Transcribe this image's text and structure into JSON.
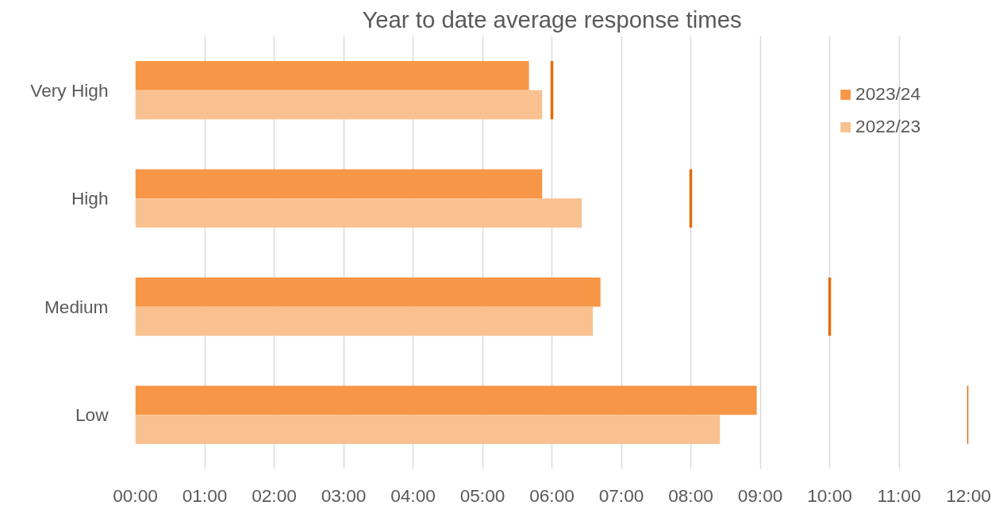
{
  "chart_data": {
    "type": "bar",
    "orientation": "horizontal",
    "title": "Year to date average response times",
    "categories": [
      "Very High",
      "High",
      "Medium",
      "Low"
    ],
    "series": [
      {
        "name": "2023/24",
        "color": "#f79646",
        "values": [
          5.67,
          5.86,
          6.7,
          8.95
        ]
      },
      {
        "name": "2022/23",
        "color": "#f9c190",
        "values": [
          5.86,
          6.43,
          6.59,
          8.42
        ]
      },
      {
        "type": "bar",
        "color": "#e36c0a",
        "base": [
          5.98,
          7.98,
          9.98,
          11.98
        ],
        "values": [
          0.04,
          0.04,
          0.04,
          0.04
        ]
      }
    ],
    "xlim": [
      0,
      12
    ],
    "xticks": [
      {
        "value": 0,
        "label": "00:00"
      },
      {
        "value": 1,
        "label": "01:00"
      },
      {
        "value": 2,
        "label": "02:00"
      },
      {
        "value": 3,
        "label": "03:00"
      },
      {
        "value": 4,
        "label": "04:00"
      },
      {
        "value": 5,
        "label": "05:00"
      },
      {
        "value": 6,
        "label": "06:00"
      },
      {
        "value": 7,
        "label": "07:00"
      },
      {
        "value": 8,
        "label": "08:00"
      },
      {
        "value": 9,
        "label": "09:00"
      },
      {
        "value": 10,
        "label": "10:00"
      },
      {
        "value": 11,
        "label": "11:00"
      },
      {
        "value": 12,
        "label": "12:00"
      }
    ],
    "grid": "x",
    "legend": "top right"
  }
}
